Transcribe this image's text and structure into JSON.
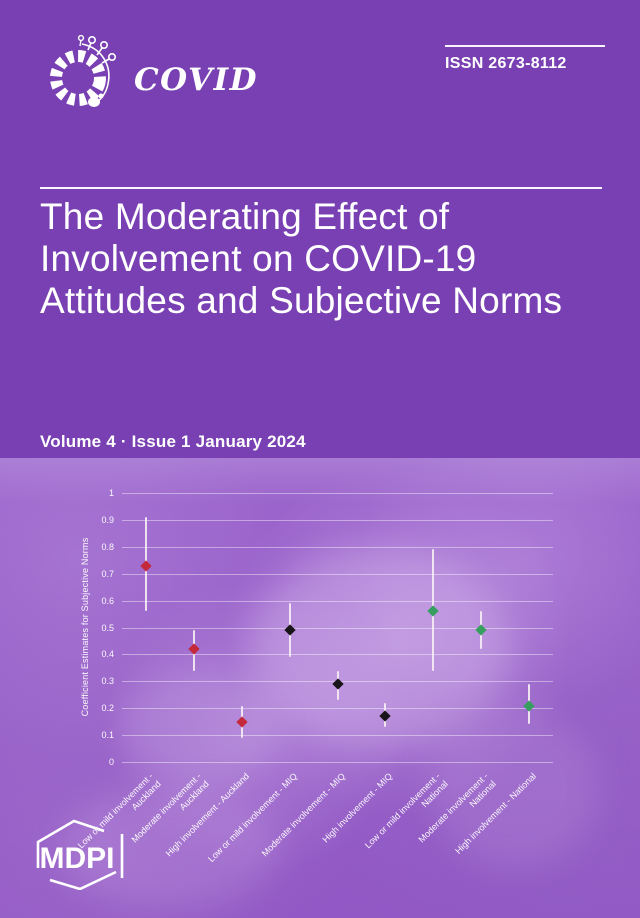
{
  "header": {
    "journal_name": "COVID",
    "issn": "ISSN 2673-8112",
    "title": "The Moderating Effect of Involvement on COVID-19 Attitudes and Subjective Norms",
    "title_lines": [
      "The Moderating Effect of",
      "Involvement on COVID-19",
      "Attitudes and Subjective Norms"
    ],
    "issue_line": "Volume 4 · Issue 1 January 2024"
  },
  "footer": {
    "publisher": "MDPI"
  },
  "colors": {
    "header_purple": "#7840b2",
    "photo_purple": "#9760c8",
    "text_white": "#ffffff",
    "gridline_white": "rgba(255,255,255,0.42)",
    "series_auckland_red": "#c4293b",
    "series_miq_black": "#191419",
    "series_national_green": "#379e60"
  },
  "chart_data": {
    "type": "scatter",
    "subtype": "point_estimates_with_error_bars",
    "title": "",
    "xlabel": "",
    "ylabel": "Coefficient Estimates for Subjective Norms",
    "ylim": [
      0,
      1
    ],
    "yticks": [
      "0",
      "0.1",
      "0.2",
      "0.3",
      "0.4",
      "0.5",
      "0.6",
      "0.7",
      "0.8",
      "0.9",
      "1"
    ],
    "grid": true,
    "legend_position": "none",
    "series": [
      {
        "name": "Auckland",
        "color": "#c4293b"
      },
      {
        "name": "MIQ",
        "color": "#191419"
      },
      {
        "name": "National",
        "color": "#379e60"
      }
    ],
    "categories": [
      "Low or mild involvement - Auckland",
      "Moderate involvement - Auckland",
      "High involvement - Auckland",
      "Low or mild involvement - MIQ",
      "Moderate involvement - MIQ",
      "High involvement - MIQ",
      "Low or mild involvement - National",
      "Moderate involvement - National",
      "High involvement - National"
    ],
    "points": [
      {
        "label": "Low or mild involvement - Auckland",
        "label_lines": [
          "Low or mild involvement -",
          "Auckland"
        ],
        "group": "Auckland",
        "color": "#c4293b",
        "estimate": 0.73,
        "ci_low": 0.56,
        "ci_high": 0.91
      },
      {
        "label": "Moderate involvement - Auckland",
        "label_lines": [
          "Moderate involvement -",
          "Auckland"
        ],
        "group": "Auckland",
        "color": "#c4293b",
        "estimate": 0.42,
        "ci_low": 0.34,
        "ci_high": 0.49
      },
      {
        "label": "High involvement - Auckland",
        "label_lines": [
          "High involvement - Auckland"
        ],
        "group": "Auckland",
        "color": "#c4293b",
        "estimate": 0.15,
        "ci_low": 0.09,
        "ci_high": 0.21
      },
      {
        "label": "Low or mild involvement - MIQ",
        "label_lines": [
          "Low or mild involvement - MIQ"
        ],
        "group": "MIQ",
        "color": "#191419",
        "estimate": 0.49,
        "ci_low": 0.39,
        "ci_high": 0.59
      },
      {
        "label": "Moderate involvement - MIQ",
        "label_lines": [
          "Moderate involvement - MIQ"
        ],
        "group": "MIQ",
        "color": "#191419",
        "estimate": 0.29,
        "ci_low": 0.23,
        "ci_high": 0.34
      },
      {
        "label": "High involvement - MIQ",
        "label_lines": [
          "High involvement - MIQ"
        ],
        "group": "MIQ",
        "color": "#191419",
        "estimate": 0.17,
        "ci_low": 0.13,
        "ci_high": 0.22
      },
      {
        "label": "Low or mild involvement - National",
        "label_lines": [
          "Low or mild involvement -",
          "National"
        ],
        "group": "National",
        "color": "#379e60",
        "estimate": 0.56,
        "ci_low": 0.34,
        "ci_high": 0.79
      },
      {
        "label": "Moderate involvement - National",
        "label_lines": [
          "Moderate involvement -",
          "National"
        ],
        "group": "National",
        "color": "#379e60",
        "estimate": 0.49,
        "ci_low": 0.42,
        "ci_high": 0.56
      },
      {
        "label": "High involvement - National",
        "label_lines": [
          "High involvement - National"
        ],
        "group": "National",
        "color": "#379e60",
        "estimate": 0.21,
        "ci_low": 0.14,
        "ci_high": 0.29
      }
    ]
  }
}
